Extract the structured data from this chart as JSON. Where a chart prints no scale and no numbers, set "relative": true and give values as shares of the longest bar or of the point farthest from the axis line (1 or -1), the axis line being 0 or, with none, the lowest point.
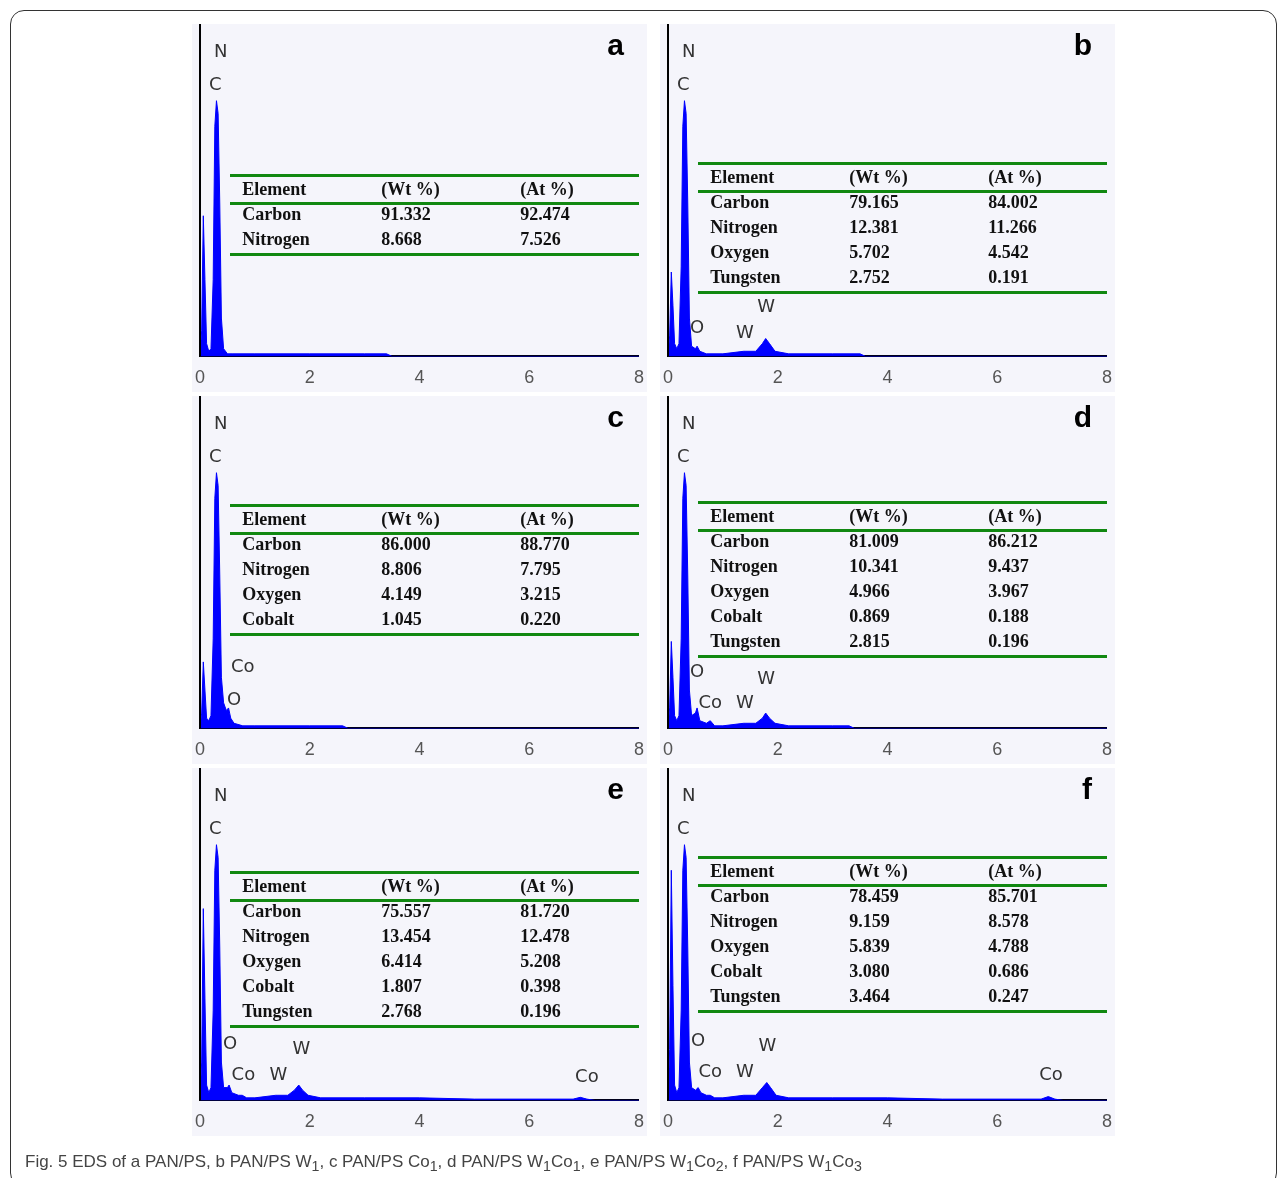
{
  "chart_data": [
    {
      "type": "area",
      "title": "a",
      "relative": true,
      "ref_lines": [
        {
          "axis": "x",
          "value": 0,
          "color": "#000000"
        }
      ],
      "color": "#0000ff",
      "xlim": [
        0,
        8
      ],
      "xticks": [
        0,
        2,
        4,
        6,
        8
      ],
      "x": [
        0,
        0.03,
        0.06,
        0.09,
        0.12,
        0.16,
        0.2,
        0.24,
        0.27,
        0.3,
        0.33,
        0.36,
        0.39,
        0.43,
        0.5,
        0.6,
        1,
        2,
        3,
        3.4,
        3.5,
        8
      ],
      "values": [
        0,
        0.1,
        0.55,
        0.3,
        0.05,
        0.02,
        0.03,
        0.3,
        0.9,
        1,
        0.95,
        0.6,
        0.15,
        0.03,
        0.01,
        0.01,
        0.01,
        0.01,
        0.01,
        0.01,
        0,
        0
      ],
      "annotations": [
        "N",
        "C",
        "Element",
        "(Wt %)",
        "(At %)",
        "Carbon",
        "91.332",
        "92.474",
        "Nitrogen",
        "8.668",
        "7.526"
      ]
    },
    {
      "type": "area",
      "title": "b",
      "relative": true,
      "ref_lines": [
        {
          "axis": "x",
          "value": 0,
          "color": "#000000"
        }
      ],
      "color": "#0000ff",
      "xlim": [
        0,
        8
      ],
      "xticks": [
        0,
        2,
        4,
        6,
        8
      ],
      "x": [
        0,
        0.03,
        0.06,
        0.09,
        0.12,
        0.16,
        0.2,
        0.24,
        0.27,
        0.3,
        0.33,
        0.36,
        0.39,
        0.43,
        0.5,
        0.53,
        0.58,
        0.7,
        1,
        1.38,
        1.42,
        1.6,
        1.72,
        1.78,
        1.85,
        1.95,
        2.2,
        3,
        3.5,
        3.6,
        8
      ],
      "values": [
        0,
        0.08,
        0.33,
        0.2,
        0.05,
        0.03,
        0.05,
        0.35,
        0.9,
        1,
        0.95,
        0.6,
        0.15,
        0.04,
        0.03,
        0.04,
        0.02,
        0.01,
        0.01,
        0.02,
        0.02,
        0.02,
        0.05,
        0.07,
        0.05,
        0.02,
        0.01,
        0.01,
        0.01,
        0,
        0
      ],
      "annotations": [
        "N",
        "C",
        "O",
        "W",
        "W",
        "Element",
        "(Wt %)",
        "(At %)",
        "Carbon",
        "79.165",
        "84.002",
        "Nitrogen",
        "12.381",
        "11.266",
        "Oxygen",
        "5.702",
        "4.542",
        "Tungsten",
        "2.752",
        "0.191"
      ]
    },
    {
      "type": "area",
      "title": "c",
      "relative": true,
      "ref_lines": [
        {
          "axis": "x",
          "value": 0,
          "color": "#000000"
        }
      ],
      "color": "#0000ff",
      "xlim": [
        0,
        8
      ],
      "xticks": [
        0,
        2,
        4,
        6,
        8
      ],
      "x": [
        0,
        0.03,
        0.06,
        0.09,
        0.12,
        0.16,
        0.2,
        0.24,
        0.27,
        0.3,
        0.33,
        0.36,
        0.39,
        0.43,
        0.48,
        0.52,
        0.56,
        0.62,
        0.78,
        1,
        2,
        2.6,
        2.7,
        8
      ],
      "values": [
        0,
        0.06,
        0.26,
        0.15,
        0.04,
        0.03,
        0.05,
        0.35,
        0.9,
        1,
        0.95,
        0.6,
        0.2,
        0.1,
        0.07,
        0.08,
        0.04,
        0.02,
        0.01,
        0.01,
        0.01,
        0.01,
        0,
        0
      ],
      "annotations": [
        "N",
        "C",
        "Co",
        "O",
        "Element",
        "(Wt %)",
        "(At %)",
        "Carbon",
        "86.000",
        "88.770",
        "Nitrogen",
        "8.806",
        "7.795",
        "Oxygen",
        "4.149",
        "3.215",
        "Cobalt",
        "1.045",
        "0.220"
      ]
    },
    {
      "type": "area",
      "title": "d",
      "relative": true,
      "ref_lines": [
        {
          "axis": "x",
          "value": 0,
          "color": "#000000"
        }
      ],
      "color": "#0000ff",
      "xlim": [
        0,
        8
      ],
      "xticks": [
        0,
        2,
        4,
        6,
        8
      ],
      "x": [
        0,
        0.03,
        0.06,
        0.09,
        0.12,
        0.16,
        0.2,
        0.24,
        0.27,
        0.3,
        0.33,
        0.36,
        0.39,
        0.43,
        0.5,
        0.53,
        0.58,
        0.7,
        0.77,
        0.85,
        1,
        1.38,
        1.42,
        1.6,
        1.72,
        1.78,
        1.85,
        1.95,
        2.2,
        3,
        3.3,
        3.4,
        8
      ],
      "values": [
        0,
        0.08,
        0.34,
        0.2,
        0.05,
        0.03,
        0.05,
        0.35,
        0.9,
        1,
        0.95,
        0.6,
        0.15,
        0.05,
        0.06,
        0.08,
        0.03,
        0.02,
        0.03,
        0.01,
        0.01,
        0.02,
        0.02,
        0.02,
        0.04,
        0.06,
        0.04,
        0.02,
        0.01,
        0.01,
        0.01,
        0,
        0
      ],
      "annotations": [
        "N",
        "C",
        "O",
        "Co",
        "W",
        "W",
        "Element",
        "(Wt %)",
        "(At %)",
        "Carbon",
        "81.009",
        "86.212",
        "Nitrogen",
        "10.341",
        "9.437",
        "Oxygen",
        "4.966",
        "3.967",
        "Cobalt",
        "0.869",
        "0.188",
        "Tungsten",
        "2.815",
        "0.196"
      ]
    },
    {
      "type": "area",
      "title": "e",
      "relative": true,
      "ref_lines": [
        {
          "axis": "x",
          "value": 0,
          "color": "#000000"
        }
      ],
      "color": "#0000ff",
      "xlim": [
        0,
        8
      ],
      "xticks": [
        0,
        2,
        4,
        6,
        8
      ],
      "x": [
        0,
        0.03,
        0.06,
        0.09,
        0.12,
        0.16,
        0.2,
        0.24,
        0.27,
        0.3,
        0.33,
        0.36,
        0.39,
        0.43,
        0.5,
        0.53,
        0.58,
        0.7,
        0.77,
        0.85,
        1,
        1.38,
        1.42,
        1.6,
        1.72,
        1.8,
        1.87,
        1.97,
        2.2,
        3,
        4,
        5,
        6.8,
        6.93,
        7.05,
        7.2,
        8
      ],
      "values": [
        0,
        0.15,
        0.75,
        0.4,
        0.06,
        0.03,
        0.05,
        0.35,
        0.9,
        1,
        0.95,
        0.6,
        0.15,
        0.05,
        0.05,
        0.06,
        0.03,
        0.02,
        0.02,
        0.01,
        0.01,
        0.02,
        0.02,
        0.02,
        0.04,
        0.06,
        0.04,
        0.02,
        0.01,
        0.01,
        0.01,
        0.005,
        0.005,
        0.012,
        0.005,
        0,
        0
      ],
      "annotations": [
        "N",
        "C",
        "O",
        "Co",
        "W",
        "W",
        "Co",
        "Element",
        "(Wt %)",
        "(At %)",
        "Carbon",
        "75.557",
        "81.720",
        "Nitrogen",
        "13.454",
        "12.478",
        "Oxygen",
        "6.414",
        "5.208",
        "Cobalt",
        "1.807",
        "0.398",
        "Tungsten",
        "2.768",
        "0.196"
      ]
    },
    {
      "type": "area",
      "title": "f",
      "relative": true,
      "ref_lines": [
        {
          "axis": "x",
          "value": 0,
          "color": "#000000"
        }
      ],
      "color": "#0000ff",
      "xlim": [
        0,
        8
      ],
      "xticks": [
        0,
        2,
        4,
        6,
        8
      ],
      "x": [
        0,
        0.03,
        0.06,
        0.09,
        0.12,
        0.16,
        0.2,
        0.24,
        0.27,
        0.3,
        0.33,
        0.36,
        0.39,
        0.43,
        0.5,
        0.55,
        0.6,
        0.7,
        0.77,
        0.85,
        1,
        1.38,
        1.42,
        1.6,
        1.72,
        1.8,
        1.87,
        1.97,
        2.2,
        3,
        4,
        5,
        6.8,
        6.93,
        7.05,
        7.2,
        8
      ],
      "values": [
        0,
        0.2,
        0.9,
        0.45,
        0.06,
        0.03,
        0.05,
        0.35,
        0.9,
        1,
        0.95,
        0.6,
        0.15,
        0.05,
        0.04,
        0.05,
        0.03,
        0.02,
        0.02,
        0.01,
        0.01,
        0.02,
        0.02,
        0.02,
        0.05,
        0.07,
        0.05,
        0.02,
        0.01,
        0.01,
        0.01,
        0.005,
        0.005,
        0.015,
        0.005,
        0,
        0
      ],
      "annotations": [
        "N",
        "C",
        "O",
        "Co",
        "W",
        "W",
        "Co",
        "Element",
        "(Wt %)",
        "(At %)",
        "Carbon",
        "78.459",
        "85.701",
        "Nitrogen",
        "9.159",
        "8.578",
        "Oxygen",
        "5.839",
        "4.788",
        "Cobalt",
        "3.080",
        "0.686",
        "Tungsten",
        "3.464",
        "0.247"
      ]
    },
    {
      "type": "other",
      "title": "Fig. 5 EDS of a PAN/PS, b PAN/PS W$_{1}$, c PAN/PS Co$_{1}$, d PAN/PS W$_{1}$Co$_{1}$, e PAN/PS W$_{1}$Co$_{2}$, f PAN/PS W$_{1}$Co$_{3}$"
    }
  ]
}
